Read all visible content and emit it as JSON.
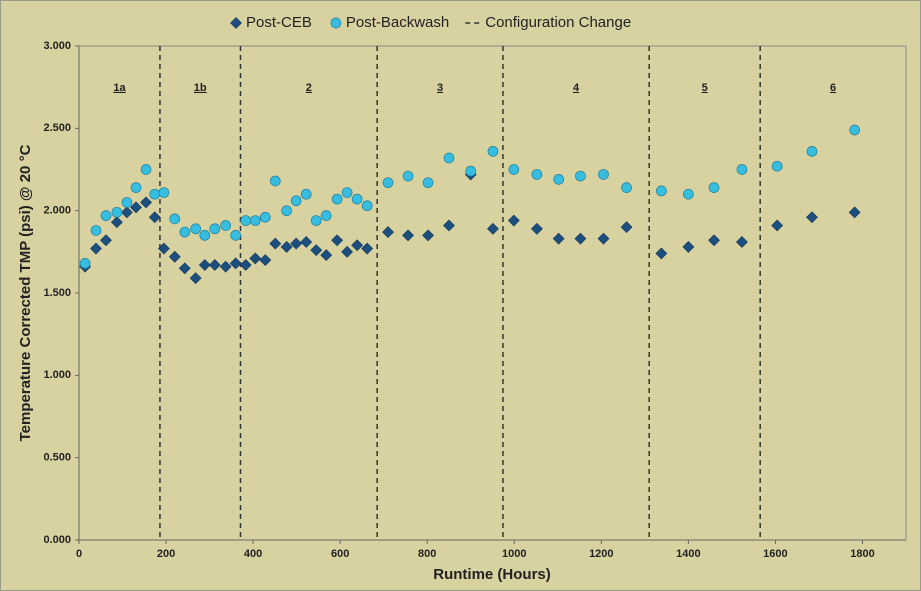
{
  "chart_data": {
    "type": "scatter",
    "x_label": "Runtime (Hours)",
    "y_label": "Temperature Corrected TMP (psi) @ 20 °C",
    "xlim": [
      0,
      1900
    ],
    "xticks": [
      0,
      200,
      400,
      600,
      800,
      1000,
      1200,
      1400,
      1600,
      1800
    ],
    "ylim": [
      0,
      3
    ],
    "yticks": [
      {
        "value": 0,
        "label": "0.000"
      },
      {
        "value": 0.5,
        "label": "0.500"
      },
      {
        "value": 1,
        "label": "1.000"
      },
      {
        "value": 1.5,
        "label": "1.500"
      },
      {
        "value": 2,
        "label": "2.000"
      },
      {
        "value": 2.5,
        "label": "2.500"
      },
      {
        "value": 3,
        "label": "3.000"
      }
    ],
    "config_change_name": "Configuration Change",
    "config_change_color": "#333333",
    "config_changes": [
      186,
      371,
      685,
      974,
      1310,
      1565
    ],
    "regions": [
      "1a",
      "1b",
      "2",
      "3",
      "4",
      "5",
      "6"
    ],
    "series": [
      {
        "name": "Post-CEB",
        "marker": "diamond",
        "color": "#1d4f7e",
        "x": [
          14,
          39,
          62,
          87,
          110,
          131,
          154,
          174,
          195,
          220,
          243,
          268,
          289,
          312,
          337,
          360,
          383,
          405,
          428,
          451,
          477,
          499,
          522,
          545,
          568,
          593,
          616,
          639,
          662,
          710,
          756,
          802,
          850,
          900,
          951,
          999,
          1052,
          1102,
          1152,
          1205,
          1258,
          1338,
          1400,
          1459,
          1523,
          1604,
          1684,
          1782
        ],
        "values": [
          1.66,
          1.77,
          1.82,
          1.93,
          1.99,
          2.02,
          2.05,
          1.96,
          1.77,
          1.72,
          1.65,
          1.59,
          1.67,
          1.67,
          1.66,
          1.68,
          1.67,
          1.71,
          1.7,
          1.8,
          1.78,
          1.8,
          1.81,
          1.76,
          1.73,
          1.82,
          1.75,
          1.79,
          1.77,
          1.87,
          1.85,
          1.85,
          1.91,
          2.22,
          1.89,
          1.94,
          1.89,
          1.83,
          1.83,
          1.83,
          1.9,
          1.74,
          1.78,
          1.82,
          1.81,
          1.91,
          1.96,
          1.99
        ]
      },
      {
        "name": "Post-Backwash",
        "marker": "circle",
        "color": "#36bde0",
        "x": [
          14,
          39,
          62,
          87,
          110,
          131,
          154,
          174,
          195,
          220,
          243,
          268,
          289,
          312,
          337,
          360,
          383,
          405,
          428,
          451,
          477,
          499,
          522,
          545,
          568,
          593,
          616,
          639,
          662,
          710,
          756,
          802,
          850,
          900,
          951,
          999,
          1052,
          1102,
          1152,
          1205,
          1258,
          1338,
          1400,
          1459,
          1523,
          1604,
          1684,
          1782
        ],
        "values": [
          1.68,
          1.88,
          1.97,
          1.99,
          2.05,
          2.14,
          2.25,
          2.1,
          2.11,
          1.95,
          1.87,
          1.89,
          1.85,
          1.89,
          1.91,
          1.85,
          1.94,
          1.94,
          1.96,
          2.18,
          2.0,
          2.06,
          2.1,
          1.94,
          1.97,
          2.07,
          2.11,
          2.07,
          2.03,
          2.17,
          2.21,
          2.17,
          2.32,
          2.24,
          2.36,
          2.25,
          2.22,
          2.19,
          2.21,
          2.22,
          2.14,
          2.12,
          2.1,
          2.14,
          2.25,
          2.27,
          2.36,
          2.49
        ]
      }
    ]
  }
}
